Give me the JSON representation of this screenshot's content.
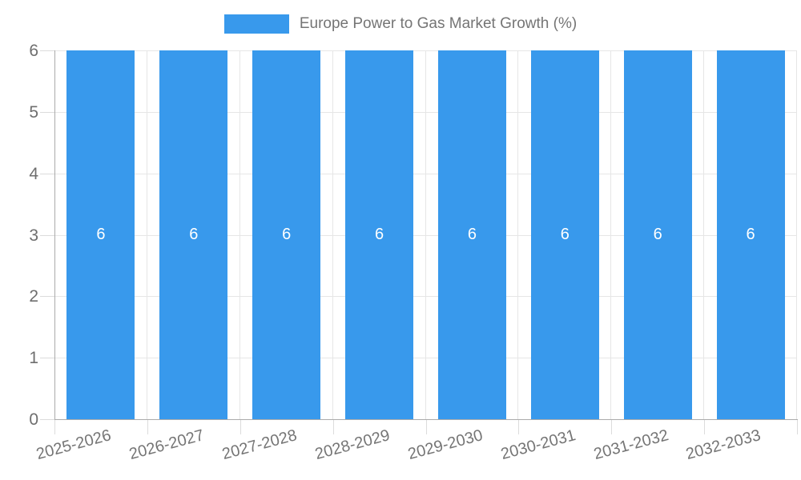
{
  "legend": {
    "label": "Europe Power to Gas Market Growth (%)"
  },
  "colors": {
    "bar": "#3899EC",
    "value_label": "#FFFFFF",
    "grid": "#E6E6E6",
    "axis": "#ABABAB",
    "tick": "#DCDCDC",
    "tick_text": "#6E6E6E",
    "legend_text": "#757575"
  },
  "chart_data": {
    "type": "bar",
    "title": "Europe Power to Gas Market Growth (%)",
    "categories": [
      "2025-2026",
      "2026-2027",
      "2027-2028",
      "2028-2029",
      "2029-2030",
      "2030-2031",
      "2031-2032",
      "2032-2033"
    ],
    "values": [
      6,
      6,
      6,
      6,
      6,
      6,
      6,
      6
    ],
    "value_labels": [
      "6",
      "6",
      "6",
      "6",
      "6",
      "6",
      "6",
      "6"
    ],
    "xlabel": "",
    "ylabel": "",
    "ylim": [
      0,
      6
    ],
    "y_ticks": [
      0,
      1,
      2,
      3,
      4,
      5,
      6
    ],
    "grid": true,
    "legend_position": "top",
    "x_label_rotation_deg": -15
  }
}
